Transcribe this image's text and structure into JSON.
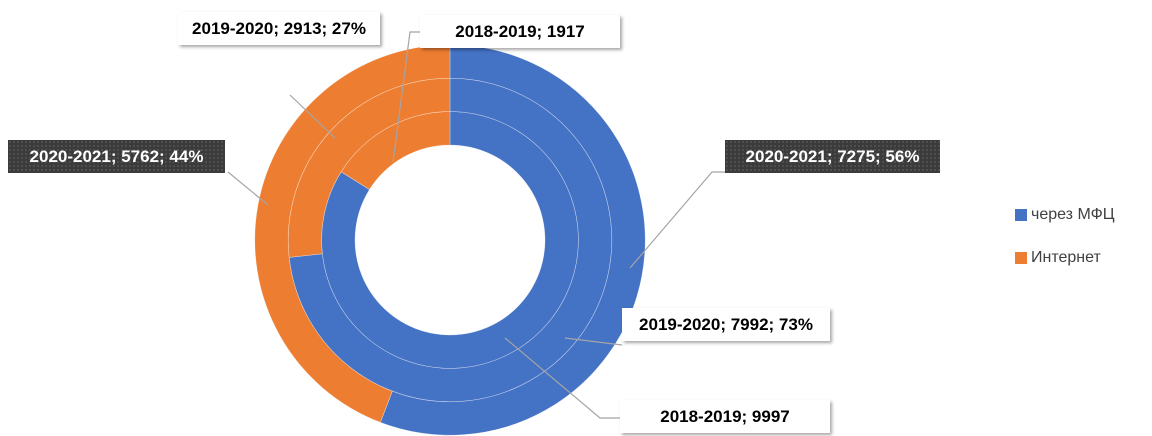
{
  "chart_data": {
    "type": "doughnut",
    "categories": [
      "2018-2019",
      "2019-2020",
      "2020-2021"
    ],
    "series": [
      {
        "name": "через МФЦ",
        "color": "#4472c4",
        "values": [
          9997,
          7992,
          7275
        ],
        "value_labels": [
          "2018-2019; 9997",
          "2019-2020; 7992; 73%",
          "2020-2021; 7275; 56%"
        ]
      },
      {
        "name": "Интернет",
        "color": "#ed7d31",
        "values": [
          1917,
          2913,
          5762
        ],
        "value_labels": [
          "2018-2019; 1917",
          "2019-2020; 2913; 27%",
          "2020-2021; 5762; 44%"
        ]
      }
    ],
    "legend": "right"
  }
}
